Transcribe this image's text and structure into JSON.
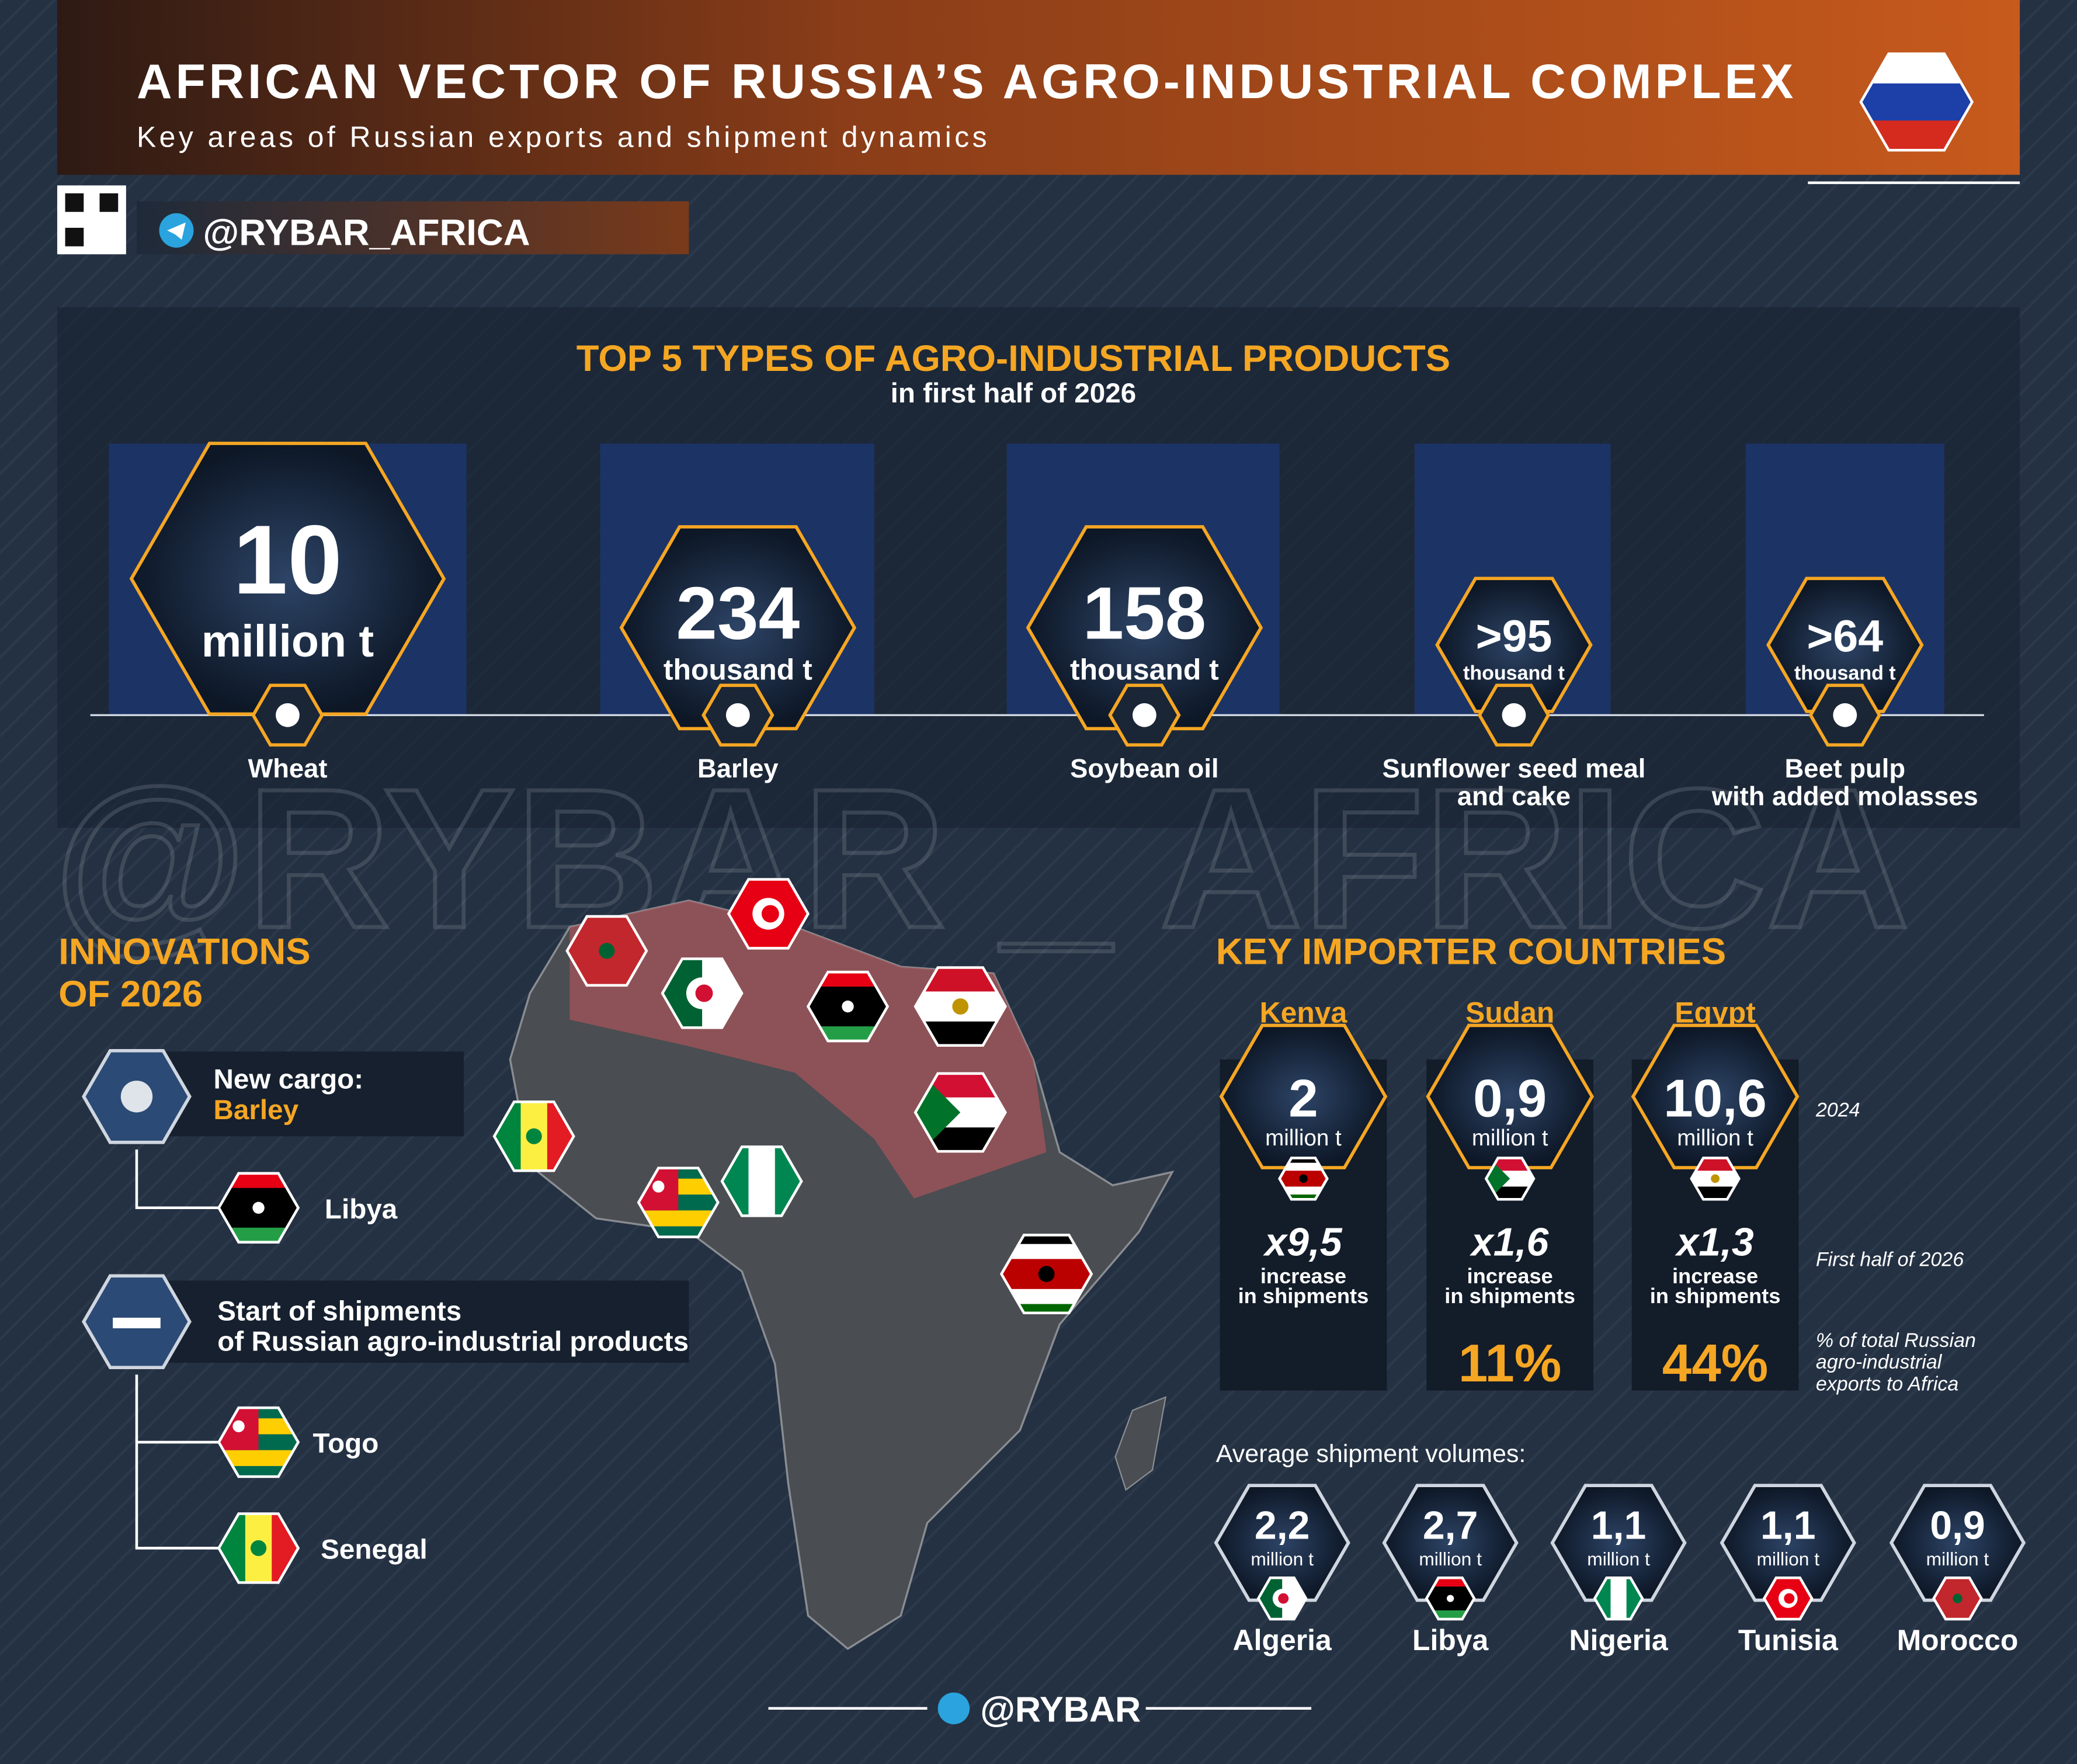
{
  "header": {
    "title": "AFRICAN VECTOR OF RUSSIA’S AGRO-INDUSTRIAL COMPLEX",
    "subtitle": "Key areas of Russian exports and shipment dynamics",
    "channel": "@RYBAR_AFRICA"
  },
  "watermark": "@RYBAR _ AFRICA",
  "top_products": {
    "title": "TOP 5 TYPES OF AGRO-INDUSTRIAL PRODUCTS",
    "subtitle": "in first half of 2026",
    "items": [
      {
        "value": "10",
        "unit": "million t",
        "name": [
          "Wheat"
        ]
      },
      {
        "value": "234",
        "unit": "thousand t",
        "name": [
          "Barley"
        ]
      },
      {
        "value": "158",
        "unit": "thousand t",
        "name": [
          "Soybean oil"
        ]
      },
      {
        "value": ">95",
        "unit": "thousand t",
        "name": [
          "Sunflower seed meal",
          "and cake"
        ]
      },
      {
        "value": ">64",
        "unit": "thousand t",
        "name": [
          "Beet pulp",
          "with added molasses"
        ]
      }
    ]
  },
  "innovations": {
    "title": [
      "INNOVATIONS",
      "OF 2026"
    ],
    "new_cargo": {
      "label": "New cargo:",
      "product": "Barley",
      "countries": [
        "Libya"
      ]
    },
    "start_of_shipments": {
      "label": [
        "Start of shipments",
        "of Russian agro-industrial products"
      ],
      "countries": [
        "Togo",
        "Senegal"
      ]
    }
  },
  "key_importers": {
    "title": "KEY IMPORTER COUNTRIES",
    "countries": [
      {
        "name": "Kenya",
        "value": "2",
        "unit": "million t",
        "growth": "x9,5",
        "growth_label": [
          "increase",
          "in shipments"
        ]
      },
      {
        "name": "Sudan",
        "value": "0,9",
        "unit": "million t",
        "growth": "x1,6",
        "growth_label": [
          "increase",
          "in shipments"
        ],
        "share": "11%"
      },
      {
        "name": "Egypt",
        "value": "10,6",
        "unit": "million t",
        "growth": "x1,3",
        "growth_label": [
          "increase",
          "in shipments"
        ],
        "share": "44%"
      }
    ],
    "legend": {
      "year": "2024",
      "period": "First half of 2026",
      "share": [
        "% of total Russian",
        "agro-industrial",
        "exports to Africa"
      ]
    },
    "average": {
      "label": "Average shipment volumes:",
      "items": [
        {
          "value": "2,2",
          "unit": "million t",
          "name": "Algeria"
        },
        {
          "value": "2,7",
          "unit": "million t",
          "name": "Libya"
        },
        {
          "value": "1,1",
          "unit": "million t",
          "name": "Nigeria"
        },
        {
          "value": "1,1",
          "unit": "million t",
          "name": "Tunisia"
        },
        {
          "value": "0,9",
          "unit": "million t",
          "name": "Morocco"
        }
      ]
    }
  },
  "footer": "@RYBAR"
}
